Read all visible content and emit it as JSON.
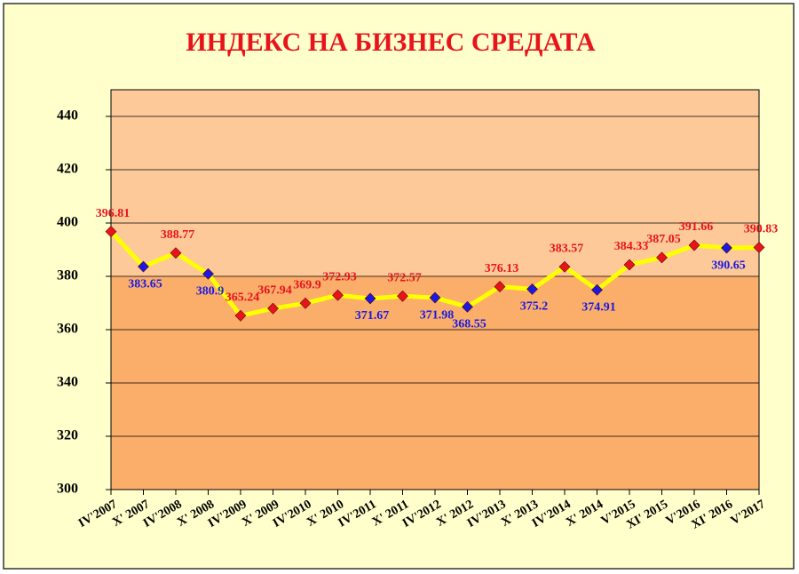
{
  "chart_data": {
    "type": "line",
    "title": "ИНДЕКС НА БИЗНЕС СРЕДАТА",
    "categories": [
      "IV'2007",
      "X' 2007",
      "IV'2008",
      "X' 2008",
      "IV'2009",
      "X' 2009",
      "IV'2010",
      "X' 2010",
      "IV'2011",
      "X' 2011",
      "IV'2012",
      "X' 2012",
      "IV'2013",
      "X' 2013",
      "IV'2014",
      "X' 2014",
      "V'2015",
      "XI' 2015",
      "V'2016",
      "XI' 2016",
      "V'2017"
    ],
    "values": [
      396.81,
      383.65,
      388.77,
      380.9,
      365.24,
      367.94,
      369.9,
      372.93,
      371.67,
      372.57,
      371.98,
      368.55,
      376.13,
      375.2,
      383.57,
      374.91,
      384.33,
      387.05,
      391.66,
      390.65,
      390.83
    ],
    "point_colors": [
      "#e8141c",
      "#1a1ae0",
      "#e8141c",
      "#1a1ae0",
      "#e8141c",
      "#e8141c",
      "#e8141c",
      "#e8141c",
      "#1a1ae0",
      "#e8141c",
      "#1a1ae0",
      "#1a1ae0",
      "#e8141c",
      "#1a1ae0",
      "#e8141c",
      "#1a1ae0",
      "#e8141c",
      "#e8141c",
      "#e8141c",
      "#1a1ae0",
      "#e8141c"
    ],
    "color": "#ffff00",
    "ylim": [
      300,
      450
    ],
    "yticks": [
      300,
      320,
      340,
      360,
      380,
      400,
      420,
      440
    ],
    "grid": true
  }
}
